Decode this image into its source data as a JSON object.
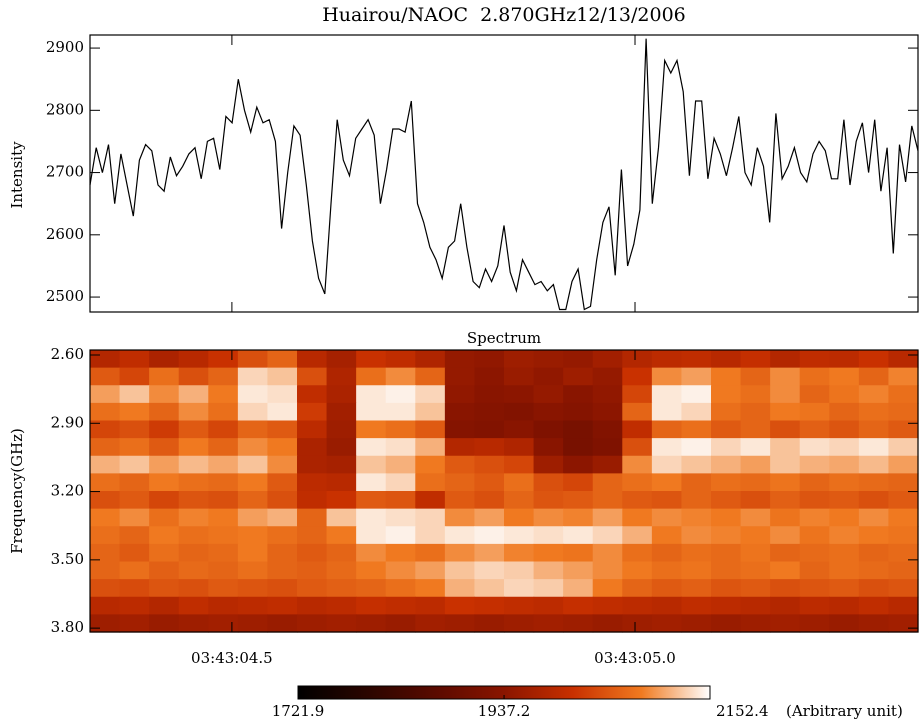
{
  "chart_data": [
    {
      "type": "line",
      "title": "Huairou/NAOC  2.870GHz12/13/2006",
      "y_label": "Intensity",
      "color": "#000000",
      "xlim": [
        4.324,
        5.351
      ],
      "xticks": [
        4.5,
        5
      ],
      "ylim": [
        2476,
        2921
      ],
      "yticks": [
        2500,
        2600,
        2700,
        2800,
        2900
      ],
      "values": [
        2680,
        2740,
        2700,
        2745,
        2650,
        2730,
        2680,
        2630,
        2720,
        2745,
        2735,
        2680,
        2670,
        2725,
        2695,
        2710,
        2730,
        2740,
        2690,
        2750,
        2755,
        2705,
        2790,
        2780,
        2850,
        2800,
        2765,
        2805,
        2780,
        2785,
        2750,
        2610,
        2700,
        2775,
        2760,
        2680,
        2590,
        2530,
        2505,
        2650,
        2785,
        2720,
        2695,
        2755,
        2770,
        2785,
        2760,
        2650,
        2705,
        2770,
        2770,
        2765,
        2815,
        2650,
        2620,
        2580,
        2560,
        2530,
        2580,
        2590,
        2650,
        2580,
        2525,
        2515,
        2545,
        2525,
        2550,
        2615,
        2540,
        2510,
        2560,
        2540,
        2520,
        2525,
        2510,
        2520,
        2480,
        2480,
        2525,
        2545,
        2480,
        2485,
        2560,
        2620,
        2645,
        2535,
        2705,
        2550,
        2585,
        2640,
        2915,
        2650,
        2740,
        2880,
        2860,
        2880,
        2830,
        2695,
        2815,
        2815,
        2690,
        2755,
        2730,
        2695,
        2740,
        2790,
        2700,
        2680,
        2740,
        2710,
        2620,
        2795,
        2690,
        2710,
        2740,
        2700,
        2685,
        2730,
        2750,
        2735,
        2690,
        2690,
        2785,
        2680,
        2750,
        2780,
        2700,
        2785,
        2670,
        2740,
        2570,
        2745,
        2685,
        2775,
        2735
      ]
    },
    {
      "type": "heatmap",
      "title": "Spectrum",
      "y_label": "Frequency(GHz)",
      "xlim": [
        4.324,
        5.351
      ],
      "xticks": [
        {
          "value": 4.5,
          "label": "03:43:04.5"
        },
        {
          "value": 5,
          "label": "03:43:05.0"
        }
      ],
      "ylim": [
        3.817,
        2.578
      ],
      "yticks": [
        {
          "value": 2.6,
          "label": "2.60"
        },
        {
          "value": 2.9,
          "label": "2.90"
        },
        {
          "value": 3.2,
          "label": "3.20"
        },
        {
          "value": 3.5,
          "label": "3.50"
        },
        {
          "value": 3.8,
          "label": "3.80"
        }
      ],
      "colormap": [
        "#000000",
        "#2a0500",
        "#5a0a00",
        "#8a1500",
        "#c83000",
        "#f07a20",
        "#ffffff"
      ],
      "colorbar": {
        "lim": [
          1721.9,
          2152.4
        ],
        "ticks": [
          1721.9,
          1937.2,
          2152.4
        ],
        "label": "(Arbitrary unit)"
      },
      "values": [
        [
          1985,
          2000,
          1975,
          1990,
          2010,
          2040,
          2060,
          1990,
          1970,
          2010,
          2000,
          1980,
          1950,
          1945,
          1960,
          1955,
          1950,
          1965,
          1985,
          1995,
          2000,
          1990,
          2005,
          1985,
          2000,
          1995,
          2010,
          1990
        ],
        [
          2050,
          2030,
          2070,
          2040,
          2060,
          2130,
          2120,
          2040,
          1980,
          2070,
          2090,
          2060,
          1950,
          1940,
          1955,
          1945,
          1960,
          1950,
          2010,
          2090,
          2100,
          2080,
          2060,
          2090,
          2070,
          2080,
          2060,
          2085
        ],
        [
          2100,
          2120,
          2090,
          2110,
          2080,
          2140,
          2135,
          2000,
          1975,
          2140,
          2145,
          2130,
          1945,
          1935,
          1940,
          1950,
          1935,
          1945,
          2030,
          2140,
          2145,
          2080,
          2070,
          2090,
          2060,
          2075,
          2085,
          2070
        ],
        [
          2070,
          2080,
          2060,
          2090,
          2070,
          2130,
          2140,
          2020,
          1965,
          2140,
          2140,
          2120,
          1935,
          1930,
          1925,
          1935,
          1930,
          1940,
          2060,
          2140,
          2130,
          2070,
          2060,
          2080,
          2075,
          2060,
          2070,
          2065
        ],
        [
          2030,
          2040,
          2020,
          2050,
          2030,
          2060,
          2050,
          1995,
          1960,
          2080,
          2070,
          2050,
          1930,
          1925,
          1935,
          1920,
          1910,
          1925,
          2000,
          2060,
          2070,
          2050,
          2060,
          2040,
          2055,
          2045,
          2060,
          2050
        ],
        [
          2060,
          2070,
          2050,
          2080,
          2060,
          2090,
          2080,
          1975,
          1955,
          2140,
          2135,
          2110,
          1985,
          1990,
          1980,
          1935,
          1910,
          1920,
          2040,
          2140,
          2145,
          2130,
          2140,
          2120,
          2135,
          2130,
          2140,
          2125
        ],
        [
          2110,
          2120,
          2100,
          2115,
          2105,
          2120,
          2090,
          1975,
          1970,
          2120,
          2110,
          2080,
          2050,
          2040,
          2030,
          1960,
          1940,
          1955,
          2090,
          2130,
          2120,
          2110,
          2100,
          2120,
          2110,
          2105,
          2115,
          2100
        ],
        [
          2070,
          2060,
          2080,
          2070,
          2065,
          2080,
          2050,
          1995,
          1990,
          2140,
          2130,
          2070,
          2060,
          2050,
          2070,
          2040,
          2030,
          2060,
          2070,
          2080,
          2060,
          2070,
          2065,
          2075,
          2060,
          2070,
          2065,
          2060
        ],
        [
          2040,
          2050,
          2030,
          2045,
          2040,
          2060,
          2040,
          2000,
          2010,
          2050,
          2045,
          2000,
          2050,
          2040,
          2060,
          2045,
          2050,
          2060,
          2050,
          2045,
          2060,
          2050,
          2040,
          2055,
          2045,
          2050,
          2040,
          2050
        ],
        [
          2080,
          2090,
          2070,
          2085,
          2080,
          2100,
          2110,
          2060,
          2120,
          2140,
          2135,
          2130,
          2090,
          2100,
          2080,
          2090,
          2085,
          2100,
          2080,
          2090,
          2085,
          2080,
          2090,
          2075,
          2085,
          2080,
          2090,
          2080
        ],
        [
          2070,
          2060,
          2080,
          2070,
          2075,
          2080,
          2070,
          2060,
          2080,
          2140,
          2145,
          2130,
          2140,
          2145,
          2140,
          2135,
          2140,
          2130,
          2110,
          2080,
          2090,
          2085,
          2080,
          2090,
          2075,
          2085,
          2080,
          2075
        ],
        [
          2060,
          2050,
          2070,
          2060,
          2065,
          2080,
          2060,
          2050,
          2060,
          2090,
          2080,
          2070,
          2090,
          2100,
          2085,
          2080,
          2075,
          2090,
          2070,
          2060,
          2070,
          2065,
          2075,
          2060,
          2065,
          2070,
          2060,
          2065
        ],
        [
          2060,
          2070,
          2055,
          2065,
          2060,
          2070,
          2060,
          2055,
          2065,
          2080,
          2090,
          2100,
          2120,
          2130,
          2125,
          2110,
          2100,
          2090,
          2080,
          2070,
          2075,
          2065,
          2070,
          2080,
          2060,
          2070,
          2065,
          2060
        ],
        [
          2040,
          2035,
          2045,
          2040,
          2050,
          2045,
          2040,
          2050,
          2055,
          2060,
          2070,
          2080,
          2110,
          2120,
          2130,
          2125,
          2110,
          2080,
          2060,
          2050,
          2055,
          2045,
          2050,
          2040,
          2045,
          2050,
          2040,
          2045
        ],
        [
          1990,
          1995,
          1985,
          2000,
          1990,
          1995,
          2000,
          1990,
          1995,
          2005,
          2000,
          1995,
          2010,
          2005,
          2000,
          1995,
          2005,
          2000,
          1995,
          1990,
          2000,
          1995,
          1990,
          1985,
          1995,
          1990,
          2000,
          1990
        ],
        [
          1960,
          1965,
          1955,
          1960,
          1965,
          1960,
          1955,
          1960,
          1965,
          1960,
          1955,
          1965,
          1960,
          1955,
          1960,
          1965,
          1960,
          1955,
          1960,
          1965,
          1960,
          1955,
          1960,
          1965,
          1960,
          1955,
          1960,
          1965
        ]
      ]
    }
  ]
}
